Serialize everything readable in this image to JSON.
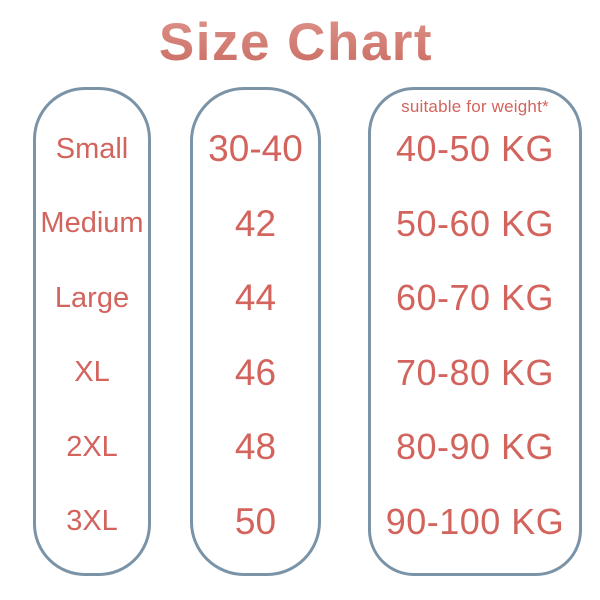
{
  "title": "Size Chart",
  "colors": {
    "text": "#d2645d",
    "title_top": "#de948c",
    "title_bottom": "#c96a60",
    "border": "#7b93a7",
    "background": "#ffffff"
  },
  "columns": [
    {
      "name": "size-names",
      "header": null,
      "rows": [
        "Small",
        "Medium",
        "Large",
        "XL",
        "2XL",
        "3XL"
      ]
    },
    {
      "name": "size-numbers",
      "header": null,
      "rows": [
        "30-40",
        "42",
        "44",
        "46",
        "48",
        "50"
      ]
    },
    {
      "name": "weights",
      "header": "suitable for weight*",
      "rows": [
        "40-50 KG",
        "50-60 KG",
        "60-70 KG",
        "70-80 KG",
        "80-90 KG",
        "90-100 KG"
      ]
    }
  ]
}
